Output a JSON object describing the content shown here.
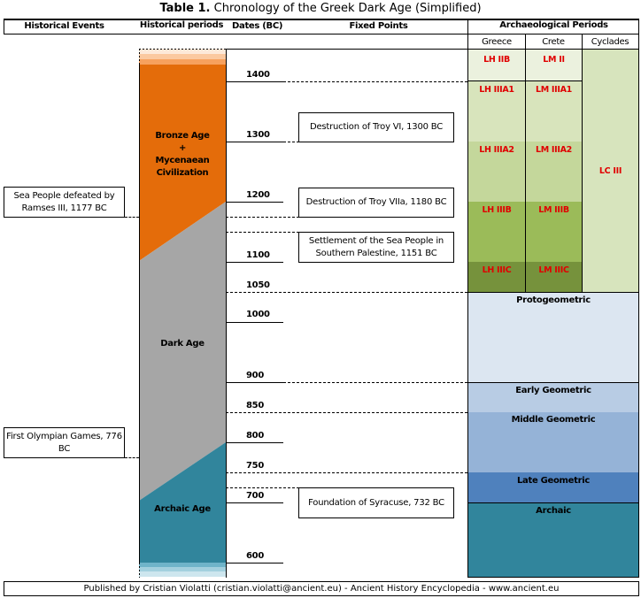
{
  "title": {
    "bold": "Table 1.",
    "rest": " Chronology of the Greek Dark Age (Simplified)"
  },
  "headers": {
    "historical_events": "Historical Events",
    "historical_periods": "Historical periods",
    "dates": "Dates (BC)",
    "fixed_points": "Fixed Points",
    "archaeological_periods": "Archaeological Periods",
    "greece": "Greece",
    "crete": "Crete",
    "cyclades": "Cyclades"
  },
  "events": [
    {
      "label": "Sea People defeated by Ramses III, 1177 BC"
    },
    {
      "label": "First Olympian Games, 776 BC"
    }
  ],
  "periods": [
    {
      "line1": "Bronze Age",
      "line2": "+",
      "line3": "Mycenaean",
      "line4": "Civilization",
      "color": "#e46c0a"
    },
    {
      "label": "Dark Age",
      "color": "#a6a6a6"
    },
    {
      "label": "Archaic Age",
      "color": "#31859c"
    }
  ],
  "dates": [
    "1400",
    "1300",
    "1200",
    "1100",
    "1050",
    "1000",
    "900",
    "850",
    "800",
    "750",
    "700",
    "600"
  ],
  "fixed_points": [
    {
      "label": "Destruction of Troy VI, 1300 BC"
    },
    {
      "label": "Destruction of Troy VIIa, 1180 BC"
    },
    {
      "label": "Settlement of the Sea People in Southern Palestine, 1151 BC"
    },
    {
      "label": "Foundation of Syracuse, 732 BC"
    }
  ],
  "greece": [
    "LH IIB",
    "LH IIIA1",
    "LH IIIA2",
    "LH IIIB",
    "LH IIIC"
  ],
  "crete": [
    "LM II",
    "LM IIIA1",
    "LM IIIA2",
    "LM IIIB",
    "LM IIIC"
  ],
  "cyclades": "LC III",
  "later_periods": [
    "Protogeometric",
    "Early Geometric",
    "Middle Geometric",
    "Late Geometric",
    "Archaic"
  ],
  "footer": "Published by Cristian Violatti (cristian.violatti@ancient.eu) - Ancient History Encyclopedia - www.ancient.eu"
}
